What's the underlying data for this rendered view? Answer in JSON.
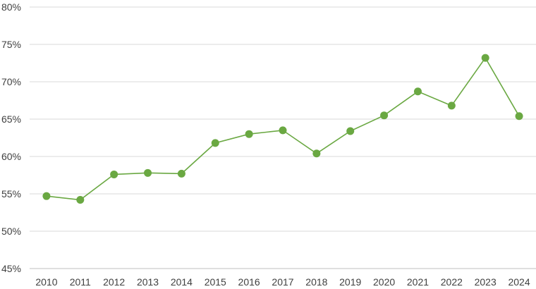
{
  "chart_data": {
    "type": "line",
    "title": "",
    "xlabel": "",
    "ylabel": "",
    "categories": [
      "2010",
      "2011",
      "2012",
      "2013",
      "2014",
      "2015",
      "2016",
      "2017",
      "2018",
      "2019",
      "2020",
      "2021",
      "2022",
      "2023",
      "2024"
    ],
    "series": [
      {
        "values": [
          54.7,
          54.2,
          57.6,
          57.8,
          57.7,
          61.8,
          63.0,
          63.5,
          60.4,
          63.4,
          65.5,
          68.7,
          66.8,
          73.2,
          65.4
        ]
      }
    ],
    "ylim": [
      45,
      80
    ],
    "yticks": [
      45,
      50,
      55,
      60,
      65,
      70,
      75,
      80
    ],
    "ytick_labels": [
      "45%",
      "50%",
      "55%",
      "60%",
      "65%",
      "70%",
      "75%",
      "80%"
    ],
    "grid": "horizontal",
    "legend": "none",
    "colors": {
      "series": "#6aa842",
      "grid": "#d9d9d9",
      "text": "#404040"
    }
  }
}
